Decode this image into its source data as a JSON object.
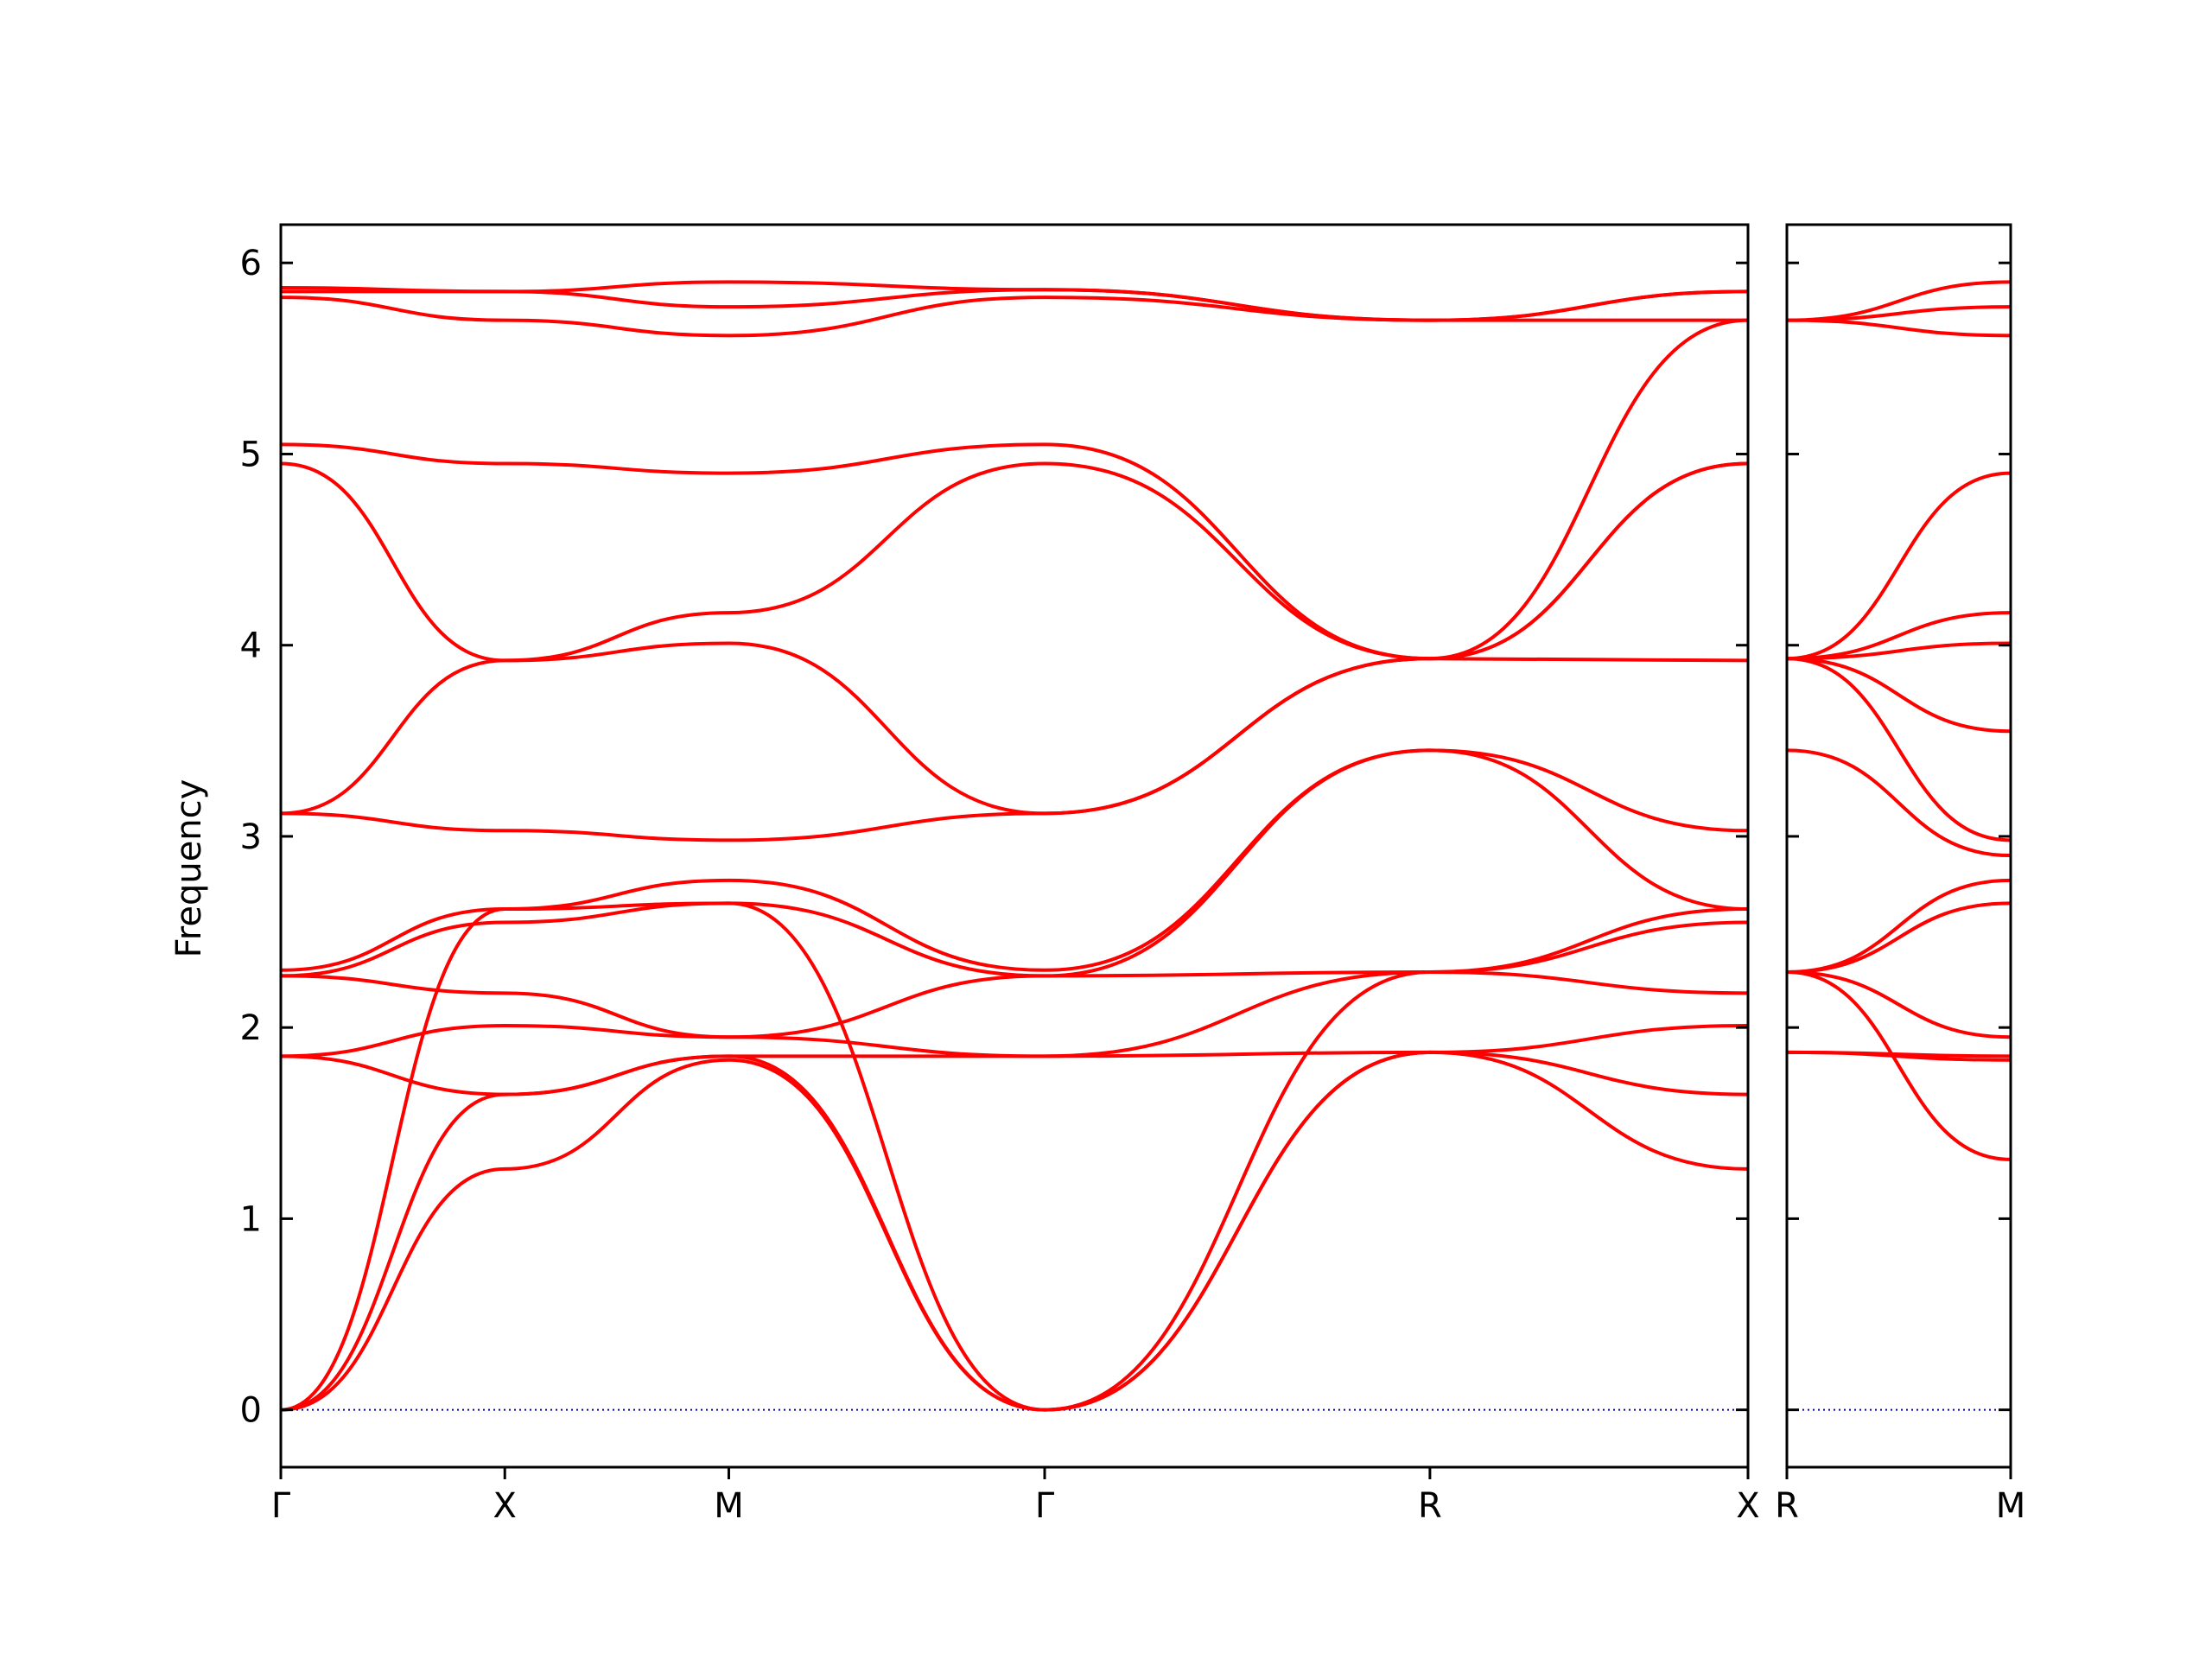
{
  "chart_data": {
    "type": "line",
    "ylabel": "Frequency",
    "ylim": [
      -0.3,
      6.2
    ],
    "yticks": [
      0,
      1,
      2,
      3,
      4,
      5,
      6
    ],
    "grid": false,
    "series_color": "#ff0000",
    "zero_line_color": "#0000cc",
    "panels": [
      {
        "path_labels": [
          "Γ",
          "X",
          "M",
          "Γ",
          "R",
          "X"
        ],
        "path_positions": [
          0,
          1,
          2,
          3.41,
          5.13,
          6.55
        ],
        "bands": [
          {
            "x": [
              0,
              1,
              2,
              3.41,
              5.13,
              6.55
            ],
            "y": [
              0,
              1.26,
              1.83,
              0,
              1.87,
              1.26
            ]
          },
          {
            "x": [
              0,
              1,
              2,
              3.41,
              5.13,
              6.55
            ],
            "y": [
              0,
              1.65,
              1.85,
              0,
              1.87,
              1.65
            ]
          },
          {
            "x": [
              0,
              1,
              2,
              3.41,
              5.13,
              6.55
            ],
            "y": [
              0,
              2.62,
              2.65,
              0,
              2.29,
              2.62
            ]
          },
          {
            "x": [
              0,
              1,
              2,
              3.41,
              5.13,
              6.55
            ],
            "y": [
              1.85,
              1.65,
              1.85,
              1.85,
              1.87,
              2.01
            ]
          },
          {
            "x": [
              0,
              1,
              2,
              3.41,
              5.13,
              6.55
            ],
            "y": [
              1.85,
              2.01,
              1.95,
              1.85,
              2.29,
              2.18
            ]
          },
          {
            "x": [
              0,
              1,
              2,
              3.41,
              5.13,
              6.55
            ],
            "y": [
              2.27,
              2.18,
              1.95,
              2.27,
              2.29,
              2.55
            ]
          },
          {
            "x": [
              0,
              1,
              2,
              3.41,
              5.13,
              6.55
            ],
            "y": [
              2.27,
              2.55,
              2.65,
              2.27,
              3.45,
              2.62
            ]
          },
          {
            "x": [
              0,
              1,
              2,
              3.41,
              5.13,
              6.55
            ],
            "y": [
              2.3,
              2.62,
              2.77,
              2.3,
              3.45,
              3.03
            ]
          },
          {
            "x": [
              0,
              1,
              2,
              3.41,
              5.13,
              6.55
            ],
            "y": [
              3.12,
              3.03,
              2.98,
              3.12,
              3.93,
              3.92
            ]
          },
          {
            "x": [
              0,
              1,
              2,
              3.41,
              5.13,
              6.55
            ],
            "y": [
              3.12,
              3.92,
              4.01,
              3.12,
              3.93,
              4.95
            ]
          },
          {
            "x": [
              0,
              1,
              2,
              3.41,
              5.13,
              6.55
            ],
            "y": [
              4.95,
              3.92,
              4.17,
              4.95,
              3.93,
              4.95
            ]
          },
          {
            "x": [
              0,
              1,
              2,
              3.41,
              5.13,
              6.55
            ],
            "y": [
              5.05,
              4.95,
              4.9,
              5.05,
              3.93,
              5.7
            ]
          },
          {
            "x": [
              0,
              1,
              2,
              3.41,
              5.13,
              6.55
            ],
            "y": [
              5.82,
              5.7,
              5.62,
              5.82,
              5.7,
              5.7
            ]
          },
          {
            "x": [
              0,
              1,
              2,
              3.41,
              5.13,
              6.55
            ],
            "y": [
              5.85,
              5.85,
              5.77,
              5.86,
              5.7,
              5.85
            ]
          },
          {
            "x": [
              0,
              1,
              2,
              3.41,
              5.13,
              6.55
            ],
            "y": [
              5.87,
              5.85,
              5.9,
              5.86,
              5.7,
              5.85
            ]
          }
        ]
      },
      {
        "path_labels": [
          "R",
          "M"
        ],
        "path_positions": [
          0,
          1
        ],
        "bands": [
          {
            "x": [
              0,
              1
            ],
            "y": [
              2.29,
              1.31
            ]
          },
          {
            "x": [
              0,
              1
            ],
            "y": [
              1.87,
              1.83
            ]
          },
          {
            "x": [
              0,
              1
            ],
            "y": [
              1.87,
              1.85
            ]
          },
          {
            "x": [
              0,
              1
            ],
            "y": [
              2.29,
              1.95
            ]
          },
          {
            "x": [
              0,
              1
            ],
            "y": [
              2.29,
              2.65
            ]
          },
          {
            "x": [
              0,
              1
            ],
            "y": [
              2.29,
              2.77
            ]
          },
          {
            "x": [
              0,
              1
            ],
            "y": [
              3.45,
              2.9
            ]
          },
          {
            "x": [
              0,
              1
            ],
            "y": [
              3.93,
              2.98
            ]
          },
          {
            "x": [
              0,
              1
            ],
            "y": [
              3.93,
              3.55
            ]
          },
          {
            "x": [
              0,
              1
            ],
            "y": [
              3.93,
              4.01
            ]
          },
          {
            "x": [
              0,
              1
            ],
            "y": [
              3.93,
              4.17
            ]
          },
          {
            "x": [
              0,
              1
            ],
            "y": [
              3.93,
              4.9
            ]
          },
          {
            "x": [
              0,
              1
            ],
            "y": [
              5.7,
              5.62
            ]
          },
          {
            "x": [
              0,
              1
            ],
            "y": [
              5.7,
              5.77
            ]
          },
          {
            "x": [
              0,
              1
            ],
            "y": [
              5.7,
              5.9
            ]
          }
        ]
      }
    ]
  }
}
